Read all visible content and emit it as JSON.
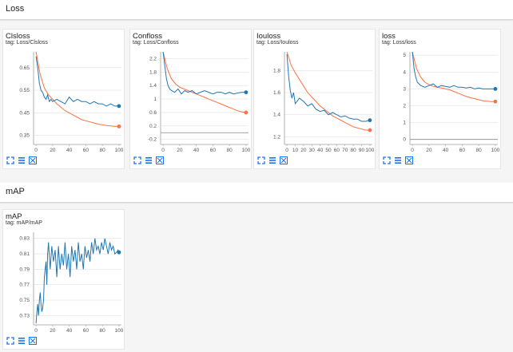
{
  "sections": [
    {
      "title": "Loss"
    },
    {
      "title": "mAP"
    }
  ],
  "colors": {
    "blue": "#1f77b4",
    "orange": "#ff7043",
    "accent": "#1a73e8",
    "grid": "#e0e0e0",
    "axis": "#9e9e9e"
  },
  "chart_data": [
    {
      "type": "line",
      "title": "Clsloss",
      "tag": "tag: Loss/Clsloss",
      "x_ticks": [
        0,
        20,
        40,
        60,
        80,
        100
      ],
      "y_ticks": [
        0.65,
        0.55,
        0.45,
        0.35
      ],
      "xlim": [
        -3,
        103
      ],
      "ylim": [
        0.31,
        0.72
      ],
      "series": [
        {
          "name": "blue",
          "x": [
            0,
            2,
            4,
            6,
            8,
            10,
            12,
            14,
            16,
            18,
            20,
            25,
            30,
            35,
            40,
            45,
            50,
            55,
            60,
            65,
            70,
            75,
            80,
            85,
            90,
            95,
            100
          ],
          "values": [
            0.7,
            0.65,
            0.58,
            0.55,
            0.54,
            0.52,
            0.51,
            0.53,
            0.5,
            0.51,
            0.5,
            0.51,
            0.5,
            0.49,
            0.52,
            0.5,
            0.51,
            0.5,
            0.5,
            0.49,
            0.5,
            0.49,
            0.49,
            0.48,
            0.49,
            0.48,
            0.48
          ]
        },
        {
          "name": "orange",
          "x": [
            0,
            5,
            10,
            15,
            20,
            25,
            30,
            35,
            40,
            45,
            50,
            55,
            60,
            65,
            70,
            75,
            80,
            85,
            90,
            95,
            100
          ],
          "values": [
            0.72,
            0.62,
            0.56,
            0.53,
            0.51,
            0.49,
            0.475,
            0.46,
            0.45,
            0.44,
            0.43,
            0.42,
            0.415,
            0.41,
            0.405,
            0.4,
            0.397,
            0.394,
            0.392,
            0.39,
            0.39
          ]
        }
      ]
    },
    {
      "type": "line",
      "title": "Confloss",
      "tag": "tag: Loss/Confloss",
      "x_ticks": [
        0,
        20,
        40,
        60,
        80,
        100
      ],
      "y_ticks": [
        2.2,
        1.8,
        1.4,
        1,
        0.6,
        0.2,
        -0.2
      ],
      "xlim": [
        -3,
        103
      ],
      "ylim": [
        -0.35,
        2.4
      ],
      "series": [
        {
          "name": "blue",
          "x": [
            0,
            2,
            4,
            6,
            8,
            10,
            14,
            18,
            22,
            26,
            30,
            35,
            40,
            45,
            50,
            55,
            60,
            65,
            70,
            75,
            80,
            85,
            90,
            95,
            100
          ],
          "values": [
            2.4,
            2.0,
            1.6,
            1.4,
            1.3,
            1.25,
            1.2,
            1.3,
            1.15,
            1.25,
            1.2,
            1.25,
            1.15,
            1.2,
            1.25,
            1.2,
            1.15,
            1.2,
            1.2,
            1.15,
            1.2,
            1.15,
            1.18,
            1.2,
            1.2
          ]
        },
        {
          "name": "orange",
          "x": [
            0,
            5,
            10,
            15,
            20,
            25,
            30,
            35,
            40,
            45,
            50,
            55,
            60,
            65,
            70,
            75,
            80,
            85,
            90,
            95,
            100
          ],
          "values": [
            2.4,
            1.9,
            1.6,
            1.45,
            1.35,
            1.3,
            1.25,
            1.2,
            1.15,
            1.1,
            1.05,
            1,
            0.95,
            0.9,
            0.85,
            0.8,
            0.75,
            0.7,
            0.65,
            0.62,
            0.6
          ]
        }
      ]
    },
    {
      "type": "line",
      "title": "Iouloss",
      "tag": "tag: Loss/Iouloss",
      "x_ticks": [
        0,
        10,
        20,
        30,
        40,
        50,
        60,
        70,
        80,
        90,
        100
      ],
      "y_ticks": [
        1.8,
        1.6,
        1.4,
        1.2
      ],
      "xlim": [
        -3,
        103
      ],
      "ylim": [
        1.13,
        1.97
      ],
      "series": [
        {
          "name": "blue",
          "x": [
            0,
            2,
            4,
            6,
            8,
            10,
            15,
            20,
            25,
            30,
            35,
            40,
            45,
            50,
            55,
            60,
            65,
            70,
            75,
            80,
            85,
            90,
            95,
            100
          ],
          "values": [
            1.95,
            1.75,
            1.62,
            1.55,
            1.6,
            1.5,
            1.55,
            1.52,
            1.48,
            1.5,
            1.45,
            1.43,
            1.44,
            1.4,
            1.42,
            1.4,
            1.38,
            1.39,
            1.37,
            1.36,
            1.36,
            1.34,
            1.34,
            1.35
          ]
        },
        {
          "name": "orange",
          "x": [
            0,
            5,
            10,
            15,
            20,
            25,
            30,
            35,
            40,
            45,
            50,
            55,
            60,
            65,
            70,
            75,
            80,
            85,
            90,
            95,
            100
          ],
          "values": [
            1.97,
            1.85,
            1.78,
            1.72,
            1.66,
            1.6,
            1.56,
            1.52,
            1.48,
            1.45,
            1.42,
            1.39,
            1.37,
            1.35,
            1.33,
            1.31,
            1.29,
            1.28,
            1.27,
            1.26,
            1.26
          ]
        }
      ]
    },
    {
      "type": "line",
      "title": "loss",
      "tag": "tag: Loss/loss",
      "x_ticks": [
        0,
        20,
        40,
        60,
        80,
        100
      ],
      "y_ticks": [
        5,
        4,
        3,
        2,
        1,
        0
      ],
      "xlim": [
        -3,
        103
      ],
      "ylim": [
        -0.3,
        5.2
      ],
      "series": [
        {
          "name": "blue",
          "x": [
            0,
            2,
            4,
            6,
            8,
            10,
            15,
            20,
            25,
            30,
            35,
            40,
            45,
            50,
            55,
            60,
            65,
            70,
            75,
            80,
            85,
            90,
            95,
            100
          ],
          "values": [
            5.2,
            4.2,
            3.7,
            3.4,
            3.3,
            3.2,
            3.1,
            3.2,
            3.3,
            3.1,
            3.2,
            3.15,
            3.1,
            3.2,
            3.1,
            3.1,
            3.05,
            3.1,
            3.0,
            3.05,
            3.0,
            3.0,
            3.0,
            3.0
          ]
        },
        {
          "name": "orange",
          "x": [
            0,
            5,
            10,
            15,
            20,
            25,
            30,
            35,
            40,
            45,
            50,
            55,
            60,
            65,
            70,
            75,
            80,
            85,
            90,
            95,
            100
          ],
          "values": [
            5.2,
            4.2,
            3.7,
            3.4,
            3.25,
            3.15,
            3.1,
            3.05,
            3.0,
            2.95,
            2.85,
            2.75,
            2.65,
            2.55,
            2.48,
            2.42,
            2.36,
            2.3,
            2.27,
            2.25,
            2.25
          ]
        }
      ]
    },
    {
      "type": "line",
      "title": "mAP",
      "tag": "tag: mAP/mAP",
      "x_ticks": [
        0,
        20,
        40,
        60,
        80,
        100
      ],
      "y_ticks": [
        0.83,
        0.81,
        0.79,
        0.77,
        0.75,
        0.73
      ],
      "xlim": [
        -3,
        103
      ],
      "ylim": [
        0.718,
        0.838
      ],
      "series": [
        {
          "name": "blue",
          "x": [
            0,
            1,
            2,
            3,
            4,
            5,
            6,
            7,
            8,
            9,
            10,
            11,
            12,
            13,
            14,
            15,
            17,
            19,
            21,
            23,
            25,
            27,
            29,
            31,
            33,
            35,
            37,
            39,
            41,
            43,
            45,
            47,
            49,
            51,
            53,
            55,
            57,
            59,
            61,
            63,
            65,
            67,
            69,
            71,
            73,
            75,
            77,
            79,
            81,
            83,
            85,
            87,
            89,
            91,
            93,
            95,
            97,
            99,
            100
          ],
          "values": [
            0.72,
            0.735,
            0.745,
            0.73,
            0.75,
            0.76,
            0.745,
            0.735,
            0.74,
            0.75,
            0.78,
            0.79,
            0.8,
            0.77,
            0.81,
            0.825,
            0.79,
            0.82,
            0.8,
            0.815,
            0.78,
            0.82,
            0.79,
            0.81,
            0.795,
            0.825,
            0.79,
            0.81,
            0.78,
            0.82,
            0.8,
            0.815,
            0.79,
            0.825,
            0.8,
            0.81,
            0.79,
            0.82,
            0.805,
            0.815,
            0.8,
            0.825,
            0.81,
            0.83,
            0.815,
            0.82,
            0.81,
            0.825,
            0.815,
            0.83,
            0.82,
            0.81,
            0.825,
            0.815,
            0.82,
            0.81,
            0.812,
            0.815,
            0.812
          ]
        }
      ]
    }
  ]
}
